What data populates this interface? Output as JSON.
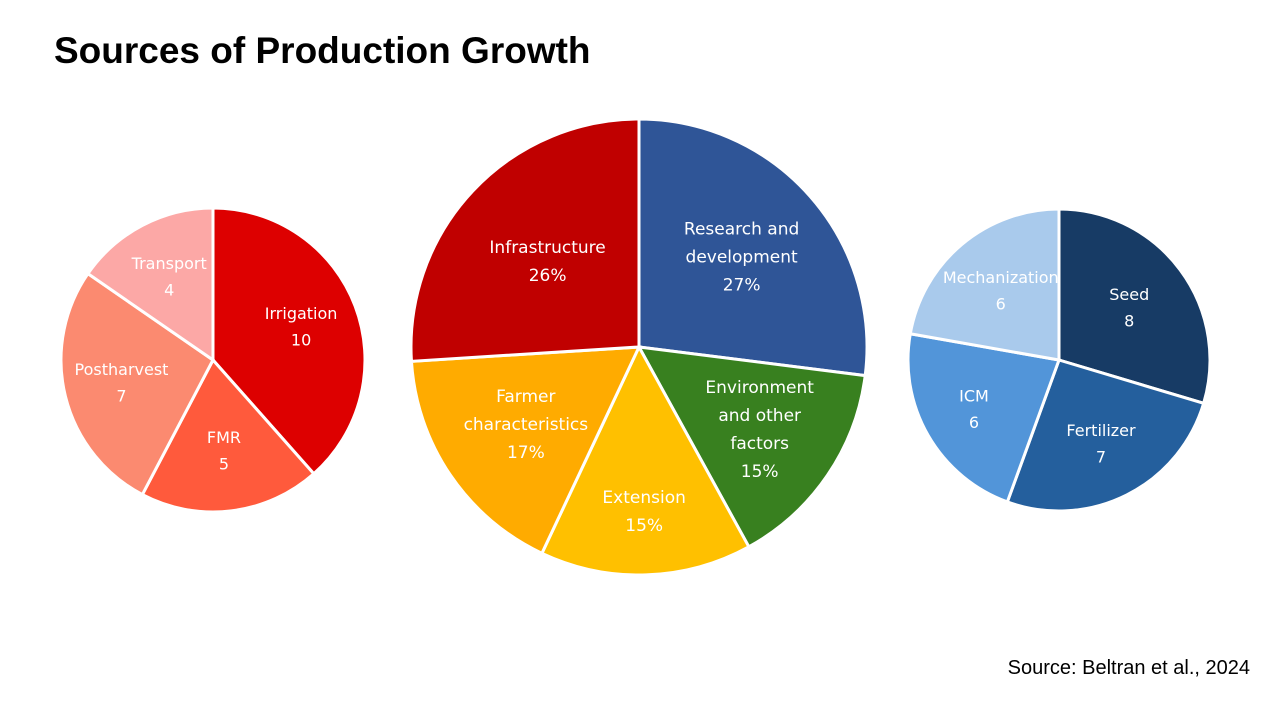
{
  "title": "Sources of Production Growth",
  "source": "Source: Beltran et al., 2024",
  "chart_data": [
    {
      "type": "pie",
      "categories": [
        "Irrigation",
        "FMR",
        "Postharvest",
        "Transport"
      ],
      "values": [
        10,
        5,
        7,
        4
      ],
      "value_labels": [
        "10",
        "5",
        "7",
        "4"
      ],
      "colors": [
        "#dd0000",
        "#ff5a3c",
        "#fb8a70",
        "#fca8a6"
      ]
    },
    {
      "type": "pie",
      "categories": [
        "Research and development",
        "Environment and other factors",
        "Extension",
        "Farmer characteristics",
        "Infrastructure"
      ],
      "values": [
        27,
        15,
        15,
        17,
        26
      ],
      "value_labels": [
        "27%",
        "15%",
        "15%",
        "17%",
        "26%"
      ],
      "colors": [
        "#2f5597",
        "#38801f",
        "#ffc000",
        "#ffab00",
        "#c00000"
      ]
    },
    {
      "type": "pie",
      "categories": [
        "Seed",
        "Fertilizer",
        "ICM",
        "Mechanization"
      ],
      "values": [
        8,
        7,
        6,
        6
      ],
      "value_labels": [
        "8",
        "7",
        "6",
        "6"
      ],
      "colors": [
        "#173b65",
        "#245f9d",
        "#5295d9",
        "#a9caec"
      ]
    }
  ]
}
